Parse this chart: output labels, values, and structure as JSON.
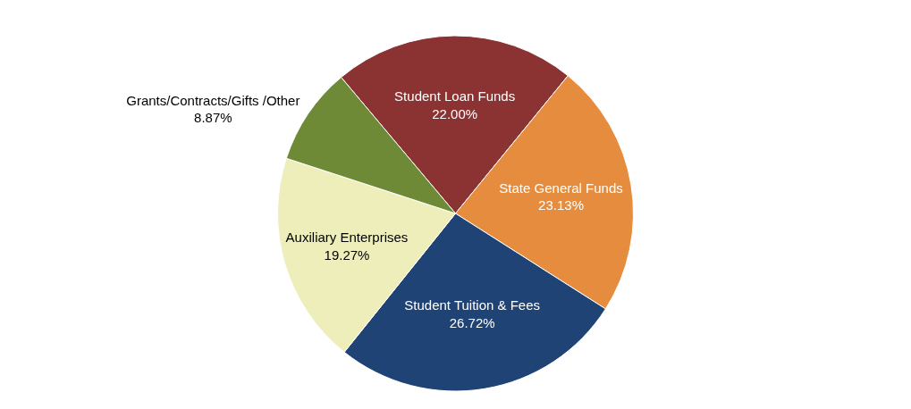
{
  "chart_data": {
    "type": "pie",
    "categories": [
      "Student Loan Funds",
      "State General Funds",
      "Student Tuition & Fees",
      "Auxiliary Enterprises",
      "Grants/Contracts/Gifts /Other"
    ],
    "values": [
      22.0,
      23.13,
      26.72,
      19.27,
      8.87
    ],
    "value_labels": [
      "22.00%",
      "23.13%",
      "26.72%",
      "19.27%",
      "8.87%"
    ],
    "colors": [
      "#8b3232",
      "#e58c3f",
      "#1f4374",
      "#eeeebb",
      "#6f8a37"
    ],
    "legend": false
  }
}
